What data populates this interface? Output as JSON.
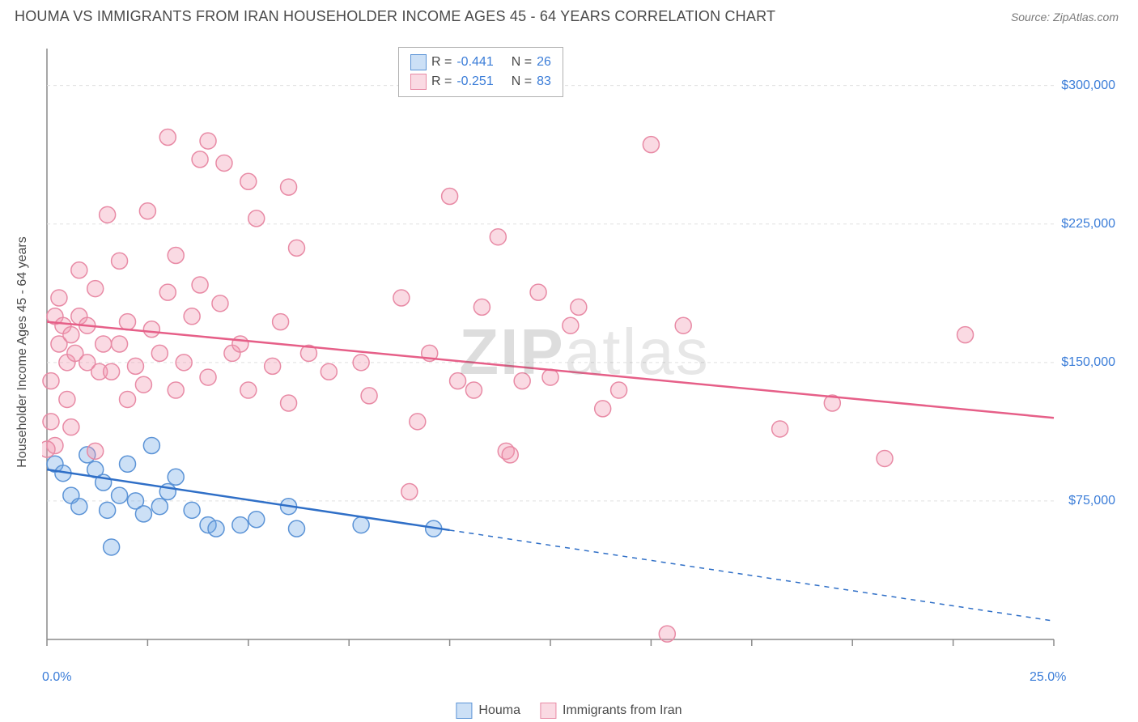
{
  "title": "HOUMA VS IMMIGRANTS FROM IRAN HOUSEHOLDER INCOME AGES 45 - 64 YEARS CORRELATION CHART",
  "source": "Source: ZipAtlas.com",
  "y_axis_label": "Householder Income Ages 45 - 64 years",
  "watermark_a": "ZIP",
  "watermark_b": "atlas",
  "chart": {
    "type": "scatter-with-regression",
    "background_color": "#ffffff",
    "plot_border_color": "#8a8a8a",
    "grid_color": "#e0e0e0",
    "grid_dash": "4,4",
    "xlim": [
      0,
      25
    ],
    "ylim": [
      0,
      320000
    ],
    "x_ticks": [
      0,
      2.5,
      5,
      7.5,
      10,
      12.5,
      15,
      17.5,
      20,
      22.5,
      25
    ],
    "x_tick_labels": {
      "0": "0.0%",
      "25": "25.0%"
    },
    "y_ticks": [
      75000,
      150000,
      225000,
      300000
    ],
    "y_tick_labels": {
      "75000": "$75,000",
      "150000": "$150,000",
      "225000": "$225,000",
      "300000": "$300,000"
    },
    "tick_color": "#8a8a8a",
    "point_radius": 10,
    "point_stroke_width": 1.5,
    "line_width": 2.5,
    "series": [
      {
        "name": "Houma",
        "fill": "rgba(110,165,230,0.35)",
        "stroke": "#5b93d6",
        "line_color": "#2f6fc7",
        "regression": {
          "x1": 0,
          "y1": 92000,
          "x2": 25,
          "y2": 10000,
          "solid_until_x": 10
        },
        "points": [
          [
            0.2,
            95000
          ],
          [
            0.4,
            90000
          ],
          [
            0.6,
            78000
          ],
          [
            0.8,
            72000
          ],
          [
            1.0,
            100000
          ],
          [
            1.2,
            92000
          ],
          [
            1.4,
            85000
          ],
          [
            1.5,
            70000
          ],
          [
            1.6,
            50000
          ],
          [
            1.8,
            78000
          ],
          [
            2.0,
            95000
          ],
          [
            2.2,
            75000
          ],
          [
            2.4,
            68000
          ],
          [
            2.6,
            105000
          ],
          [
            2.8,
            72000
          ],
          [
            3.0,
            80000
          ],
          [
            3.2,
            88000
          ],
          [
            3.6,
            70000
          ],
          [
            4.0,
            62000
          ],
          [
            4.2,
            60000
          ],
          [
            4.8,
            62000
          ],
          [
            5.2,
            65000
          ],
          [
            6.0,
            72000
          ],
          [
            6.2,
            60000
          ],
          [
            7.8,
            62000
          ],
          [
            9.6,
            60000
          ]
        ]
      },
      {
        "name": "Immigrants from Iran",
        "fill": "rgba(242,150,175,0.35)",
        "stroke": "#e88aa5",
        "line_color": "#e65f88",
        "regression": {
          "x1": 0,
          "y1": 172000,
          "x2": 25,
          "y2": 120000,
          "solid_until_x": 25
        },
        "points": [
          [
            0.1,
            140000
          ],
          [
            0.1,
            118000
          ],
          [
            0.2,
            175000
          ],
          [
            0.2,
            105000
          ],
          [
            0.3,
            160000
          ],
          [
            0.3,
            185000
          ],
          [
            0.4,
            170000
          ],
          [
            0.5,
            130000
          ],
          [
            0.5,
            150000
          ],
          [
            0.6,
            165000
          ],
          [
            0.6,
            115000
          ],
          [
            0.7,
            155000
          ],
          [
            0.8,
            175000
          ],
          [
            0.8,
            200000
          ],
          [
            1.0,
            150000
          ],
          [
            1.0,
            170000
          ],
          [
            1.2,
            190000
          ],
          [
            1.2,
            102000
          ],
          [
            1.3,
            145000
          ],
          [
            1.4,
            160000
          ],
          [
            1.5,
            230000
          ],
          [
            1.6,
            145000
          ],
          [
            1.8,
            160000
          ],
          [
            1.8,
            205000
          ],
          [
            2.0,
            172000
          ],
          [
            2.0,
            130000
          ],
          [
            2.2,
            148000
          ],
          [
            2.4,
            138000
          ],
          [
            2.5,
            232000
          ],
          [
            2.6,
            168000
          ],
          [
            2.8,
            155000
          ],
          [
            3.0,
            272000
          ],
          [
            3.0,
            188000
          ],
          [
            3.2,
            208000
          ],
          [
            3.2,
            135000
          ],
          [
            3.4,
            150000
          ],
          [
            3.6,
            175000
          ],
          [
            3.8,
            260000
          ],
          [
            3.8,
            192000
          ],
          [
            4.0,
            142000
          ],
          [
            4.0,
            270000
          ],
          [
            4.3,
            182000
          ],
          [
            4.4,
            258000
          ],
          [
            4.6,
            155000
          ],
          [
            4.8,
            160000
          ],
          [
            5.0,
            248000
          ],
          [
            5.0,
            135000
          ],
          [
            5.2,
            228000
          ],
          [
            5.6,
            148000
          ],
          [
            5.8,
            172000
          ],
          [
            6.0,
            245000
          ],
          [
            6.0,
            128000
          ],
          [
            6.2,
            212000
          ],
          [
            6.5,
            155000
          ],
          [
            7.0,
            145000
          ],
          [
            7.8,
            150000
          ],
          [
            8.0,
            132000
          ],
          [
            8.8,
            185000
          ],
          [
            9.0,
            80000
          ],
          [
            9.2,
            118000
          ],
          [
            9.5,
            155000
          ],
          [
            10.0,
            240000
          ],
          [
            10.2,
            140000
          ],
          [
            10.6,
            135000
          ],
          [
            10.8,
            180000
          ],
          [
            11.2,
            218000
          ],
          [
            11.4,
            102000
          ],
          [
            11.5,
            100000
          ],
          [
            11.8,
            140000
          ],
          [
            12.2,
            188000
          ],
          [
            12.5,
            142000
          ],
          [
            13.0,
            170000
          ],
          [
            13.2,
            180000
          ],
          [
            13.8,
            125000
          ],
          [
            14.2,
            135000
          ],
          [
            15.0,
            268000
          ],
          [
            15.8,
            170000
          ],
          [
            18.2,
            114000
          ],
          [
            19.5,
            128000
          ],
          [
            20.8,
            98000
          ],
          [
            22.8,
            165000
          ],
          [
            15.4,
            3000
          ],
          [
            0.0,
            103000
          ]
        ]
      }
    ],
    "stats_legend": {
      "rows": [
        {
          "swatch_fill": "rgba(110,165,230,0.35)",
          "swatch_stroke": "#5b93d6",
          "r_label": "R =",
          "r": "-0.441",
          "n_label": "N =",
          "n": "26"
        },
        {
          "swatch_fill": "rgba(242,150,175,0.35)",
          "swatch_stroke": "#e88aa5",
          "r_label": "R =",
          "r": "-0.251",
          "n_label": "N =",
          "n": "83"
        }
      ]
    },
    "bottom_legend": [
      {
        "swatch_fill": "rgba(110,165,230,0.35)",
        "swatch_stroke": "#5b93d6",
        "label": "Houma"
      },
      {
        "swatch_fill": "rgba(242,150,175,0.35)",
        "swatch_stroke": "#e88aa5",
        "label": "Immigrants from Iran"
      }
    ]
  }
}
